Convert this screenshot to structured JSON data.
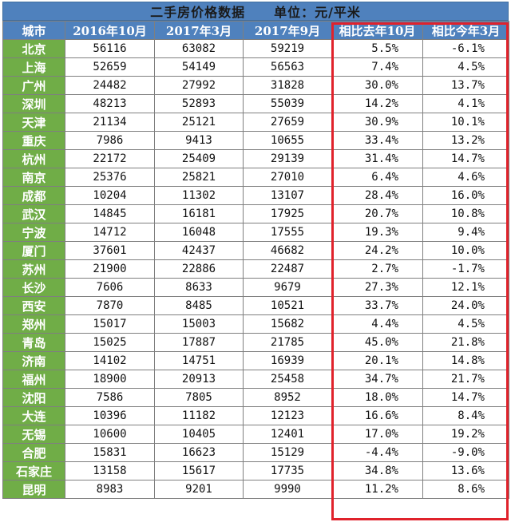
{
  "title": "二手房价格数据",
  "unit": "单位：元/平米",
  "columns": [
    "城市",
    "2016年10月",
    "2017年3月",
    "2017年9月",
    "相比去年10月",
    "相比今年3月"
  ],
  "highlight_color": "#e0222b",
  "rows": [
    {
      "city": "北京",
      "oct2016": "56116",
      "mar2017": "63082",
      "sep2017": "59219",
      "vs_last_oct": "5.5%",
      "vs_mar": "-6.1%"
    },
    {
      "city": "上海",
      "oct2016": "52659",
      "mar2017": "54149",
      "sep2017": "56563",
      "vs_last_oct": "7.4%",
      "vs_mar": "4.5%"
    },
    {
      "city": "广州",
      "oct2016": "24482",
      "mar2017": "27992",
      "sep2017": "31828",
      "vs_last_oct": "30.0%",
      "vs_mar": "13.7%"
    },
    {
      "city": "深圳",
      "oct2016": "48213",
      "mar2017": "52893",
      "sep2017": "55039",
      "vs_last_oct": "14.2%",
      "vs_mar": "4.1%"
    },
    {
      "city": "天津",
      "oct2016": "21134",
      "mar2017": "25121",
      "sep2017": "27659",
      "vs_last_oct": "30.9%",
      "vs_mar": "10.1%"
    },
    {
      "city": "重庆",
      "oct2016": "7986",
      "mar2017": "9413",
      "sep2017": "10655",
      "vs_last_oct": "33.4%",
      "vs_mar": "13.2%"
    },
    {
      "city": "杭州",
      "oct2016": "22172",
      "mar2017": "25409",
      "sep2017": "29139",
      "vs_last_oct": "31.4%",
      "vs_mar": "14.7%"
    },
    {
      "city": "南京",
      "oct2016": "25376",
      "mar2017": "25821",
      "sep2017": "27010",
      "vs_last_oct": "6.4%",
      "vs_mar": "4.6%"
    },
    {
      "city": "成都",
      "oct2016": "10204",
      "mar2017": "11302",
      "sep2017": "13107",
      "vs_last_oct": "28.4%",
      "vs_mar": "16.0%"
    },
    {
      "city": "武汉",
      "oct2016": "14845",
      "mar2017": "16181",
      "sep2017": "17925",
      "vs_last_oct": "20.7%",
      "vs_mar": "10.8%"
    },
    {
      "city": "宁波",
      "oct2016": "14712",
      "mar2017": "16048",
      "sep2017": "17555",
      "vs_last_oct": "19.3%",
      "vs_mar": "9.4%"
    },
    {
      "city": "厦门",
      "oct2016": "37601",
      "mar2017": "42437",
      "sep2017": "46682",
      "vs_last_oct": "24.2%",
      "vs_mar": "10.0%"
    },
    {
      "city": "苏州",
      "oct2016": "21900",
      "mar2017": "22886",
      "sep2017": "22487",
      "vs_last_oct": "2.7%",
      "vs_mar": "-1.7%"
    },
    {
      "city": "长沙",
      "oct2016": "7606",
      "mar2017": "8633",
      "sep2017": "9679",
      "vs_last_oct": "27.3%",
      "vs_mar": "12.1%"
    },
    {
      "city": "西安",
      "oct2016": "7870",
      "mar2017": "8485",
      "sep2017": "10521",
      "vs_last_oct": "33.7%",
      "vs_mar": "24.0%"
    },
    {
      "city": "郑州",
      "oct2016": "15017",
      "mar2017": "15003",
      "sep2017": "15682",
      "vs_last_oct": "4.4%",
      "vs_mar": "4.5%"
    },
    {
      "city": "青岛",
      "oct2016": "15025",
      "mar2017": "17887",
      "sep2017": "21785",
      "vs_last_oct": "45.0%",
      "vs_mar": "21.8%"
    },
    {
      "city": "济南",
      "oct2016": "14102",
      "mar2017": "14751",
      "sep2017": "16939",
      "vs_last_oct": "20.1%",
      "vs_mar": "14.8%"
    },
    {
      "city": "福州",
      "oct2016": "18900",
      "mar2017": "20913",
      "sep2017": "25458",
      "vs_last_oct": "34.7%",
      "vs_mar": "21.7%"
    },
    {
      "city": "沈阳",
      "oct2016": "7586",
      "mar2017": "7805",
      "sep2017": "8952",
      "vs_last_oct": "18.0%",
      "vs_mar": "14.7%"
    },
    {
      "city": "大连",
      "oct2016": "10396",
      "mar2017": "11182",
      "sep2017": "12123",
      "vs_last_oct": "16.6%",
      "vs_mar": "8.4%"
    },
    {
      "city": "无锡",
      "oct2016": "10600",
      "mar2017": "10405",
      "sep2017": "12401",
      "vs_last_oct": "17.0%",
      "vs_mar": "19.2%"
    },
    {
      "city": "合肥",
      "oct2016": "15831",
      "mar2017": "16623",
      "sep2017": "15129",
      "vs_last_oct": "-4.4%",
      "vs_mar": "-9.0%"
    },
    {
      "city": "石家庄",
      "oct2016": "13158",
      "mar2017": "15617",
      "sep2017": "17735",
      "vs_last_oct": "34.8%",
      "vs_mar": "13.6%"
    },
    {
      "city": "昆明",
      "oct2016": "8983",
      "mar2017": "9201",
      "sep2017": "9990",
      "vs_last_oct": "11.2%",
      "vs_mar": "8.6%"
    }
  ]
}
